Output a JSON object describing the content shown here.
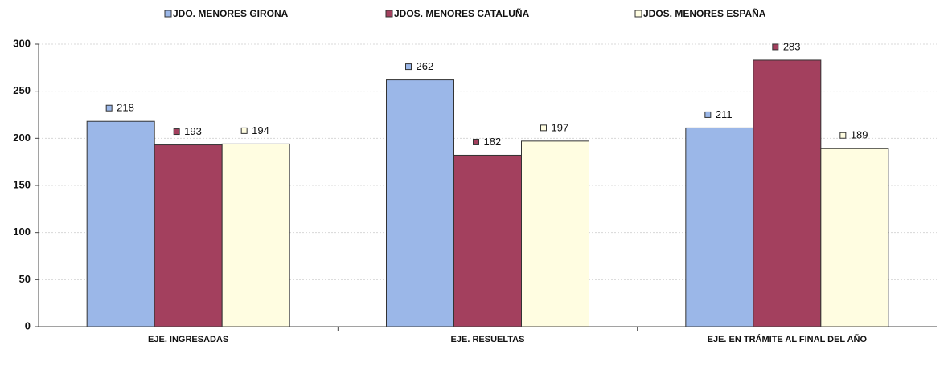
{
  "chart_data": {
    "type": "bar",
    "categories": [
      "EJE. INGRESADAS",
      "EJE. RESUELTAS",
      "EJE. EN TRÁMITE AL FINAL DEL AÑO"
    ],
    "series": [
      {
        "name": "JDO. MENORES GIRONA",
        "color": "#9bb7e8",
        "values": [
          218,
          262,
          211
        ]
      },
      {
        "name": "JDOS. MENORES CATALUÑA",
        "color": "#a3405e",
        "values": [
          193,
          182,
          283
        ]
      },
      {
        "name": "JDOS. MENORES ESPAÑA",
        "color": "#fffde1",
        "values": [
          194,
          197,
          189
        ]
      }
    ],
    "ylim": [
      0,
      300
    ],
    "yticks": [
      0,
      50,
      100,
      150,
      200,
      250,
      300
    ],
    "legend": "top"
  }
}
